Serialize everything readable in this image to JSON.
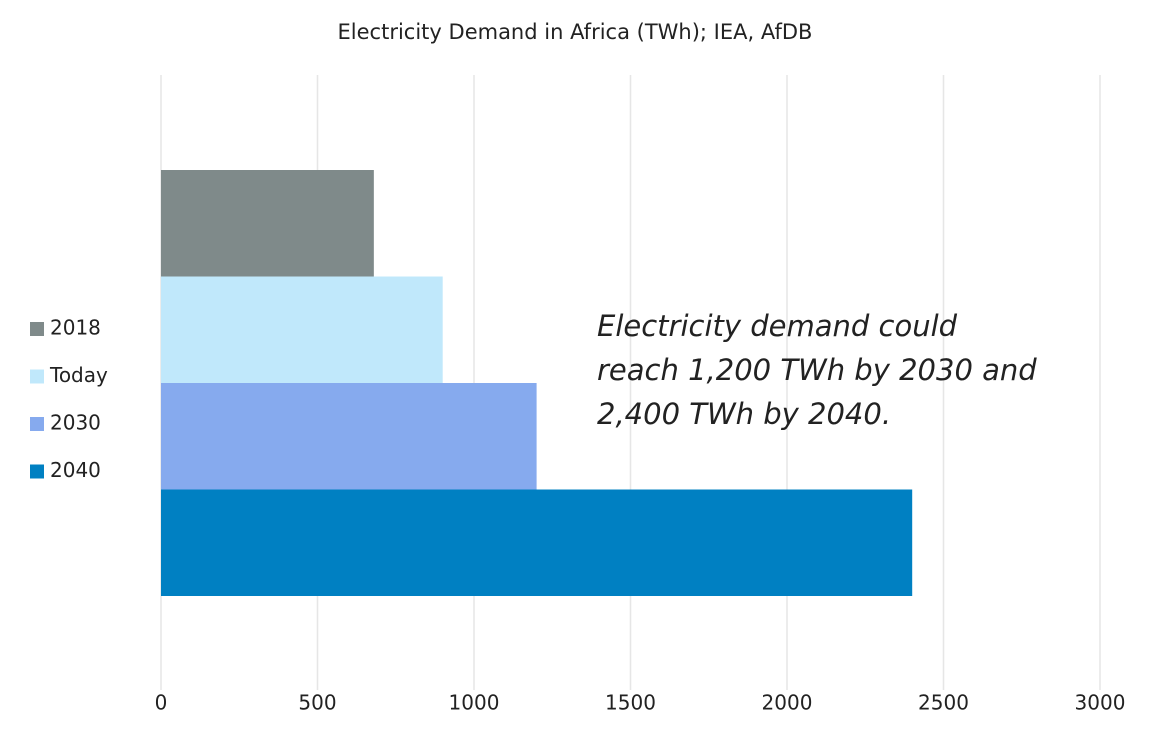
{
  "chart_data": {
    "type": "bar",
    "orientation": "horizontal",
    "title": "Electricity Demand in Africa (TWh); IEA, AfDB",
    "categories": [
      null
    ],
    "series": [
      {
        "name": "2018",
        "color": "#7f8a8a",
        "values": [
          680
        ]
      },
      {
        "name": "Today",
        "color": "#c0e8fb",
        "values": [
          900
        ]
      },
      {
        "name": "2030",
        "color": "#86aaee",
        "values": [
          1200
        ]
      },
      {
        "name": "2040",
        "color": "#0080c2",
        "values": [
          2400
        ]
      }
    ],
    "annotation": [
      "Electricity demand could",
      "reach 1,200 TWh by 2030 and",
      "2,400 TWh by 2040."
    ],
    "xlim": [
      0,
      3000
    ],
    "xticks": [
      0,
      500,
      1000,
      1500,
      2000,
      2500,
      3000
    ],
    "grid": true,
    "legend": "left"
  }
}
